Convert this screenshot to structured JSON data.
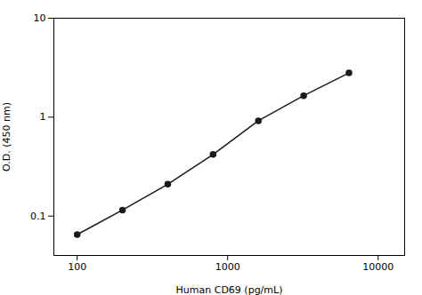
{
  "chart_data": {
    "type": "line",
    "x": [
      100,
      200,
      400,
      800,
      1600,
      3200,
      6400
    ],
    "values": [
      0.065,
      0.115,
      0.21,
      0.42,
      0.92,
      1.65,
      2.8
    ],
    "xlabel": "Human CD69 (pg/mL)",
    "ylabel": "O.D. (450 nm)",
    "xlim": [
      70,
      15000
    ],
    "ylim": [
      0.04,
      10
    ],
    "xticks": [
      100,
      1000,
      10000
    ],
    "yticks": [
      0.1,
      1,
      10
    ],
    "log": true,
    "grid": false,
    "color": "#1a1a1a",
    "marker": "circle"
  }
}
